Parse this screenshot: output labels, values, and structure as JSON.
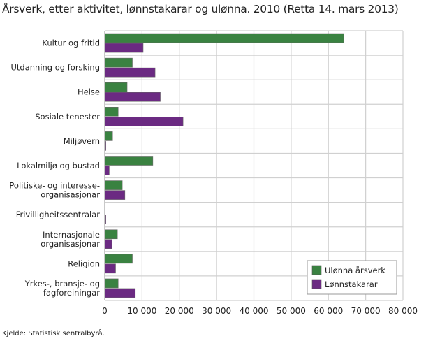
{
  "title": "Årsverk, etter aktivitet, lønnstakarar og ulønna. 2010 (Retta 14. mars 2013)",
  "source": "Kjelde: Statistisk sentralbyrå.",
  "chart_data": {
    "type": "bar",
    "orientation": "horizontal",
    "categories": [
      [
        "Kultur og fritid"
      ],
      [
        "Utdanning og forsking"
      ],
      [
        "Helse"
      ],
      [
        "Sosiale tenester"
      ],
      [
        "Miljøvern"
      ],
      [
        "Lokalmiljø og bustad"
      ],
      [
        "Politiske- og interesse-",
        "organisasjonar"
      ],
      [
        "Frivilligheitssentralar"
      ],
      [
        "Internasjonale",
        "organisasjonar"
      ],
      [
        "Religion"
      ],
      [
        "Yrkes-, bransje- og",
        "fagforeiningar"
      ]
    ],
    "series": [
      {
        "name": "Ulønna årsverk",
        "color": "#3a8241",
        "values": [
          64100,
          7400,
          6000,
          3600,
          2100,
          12900,
          4700,
          0,
          3400,
          7400,
          3600
        ]
      },
      {
        "name": "Lønnstakarar",
        "color": "#6b2a82",
        "values": [
          10300,
          13500,
          14900,
          21000,
          300,
          1200,
          5400,
          300,
          1900,
          2900,
          8200
        ]
      }
    ],
    "xlim": [
      0,
      80000
    ],
    "xticks": [
      "0",
      "10 000",
      "20 000",
      "30 000",
      "40 000",
      "50 000",
      "60 000",
      "70 000",
      "80 000"
    ],
    "grid": true,
    "legend": "bottom-right"
  }
}
